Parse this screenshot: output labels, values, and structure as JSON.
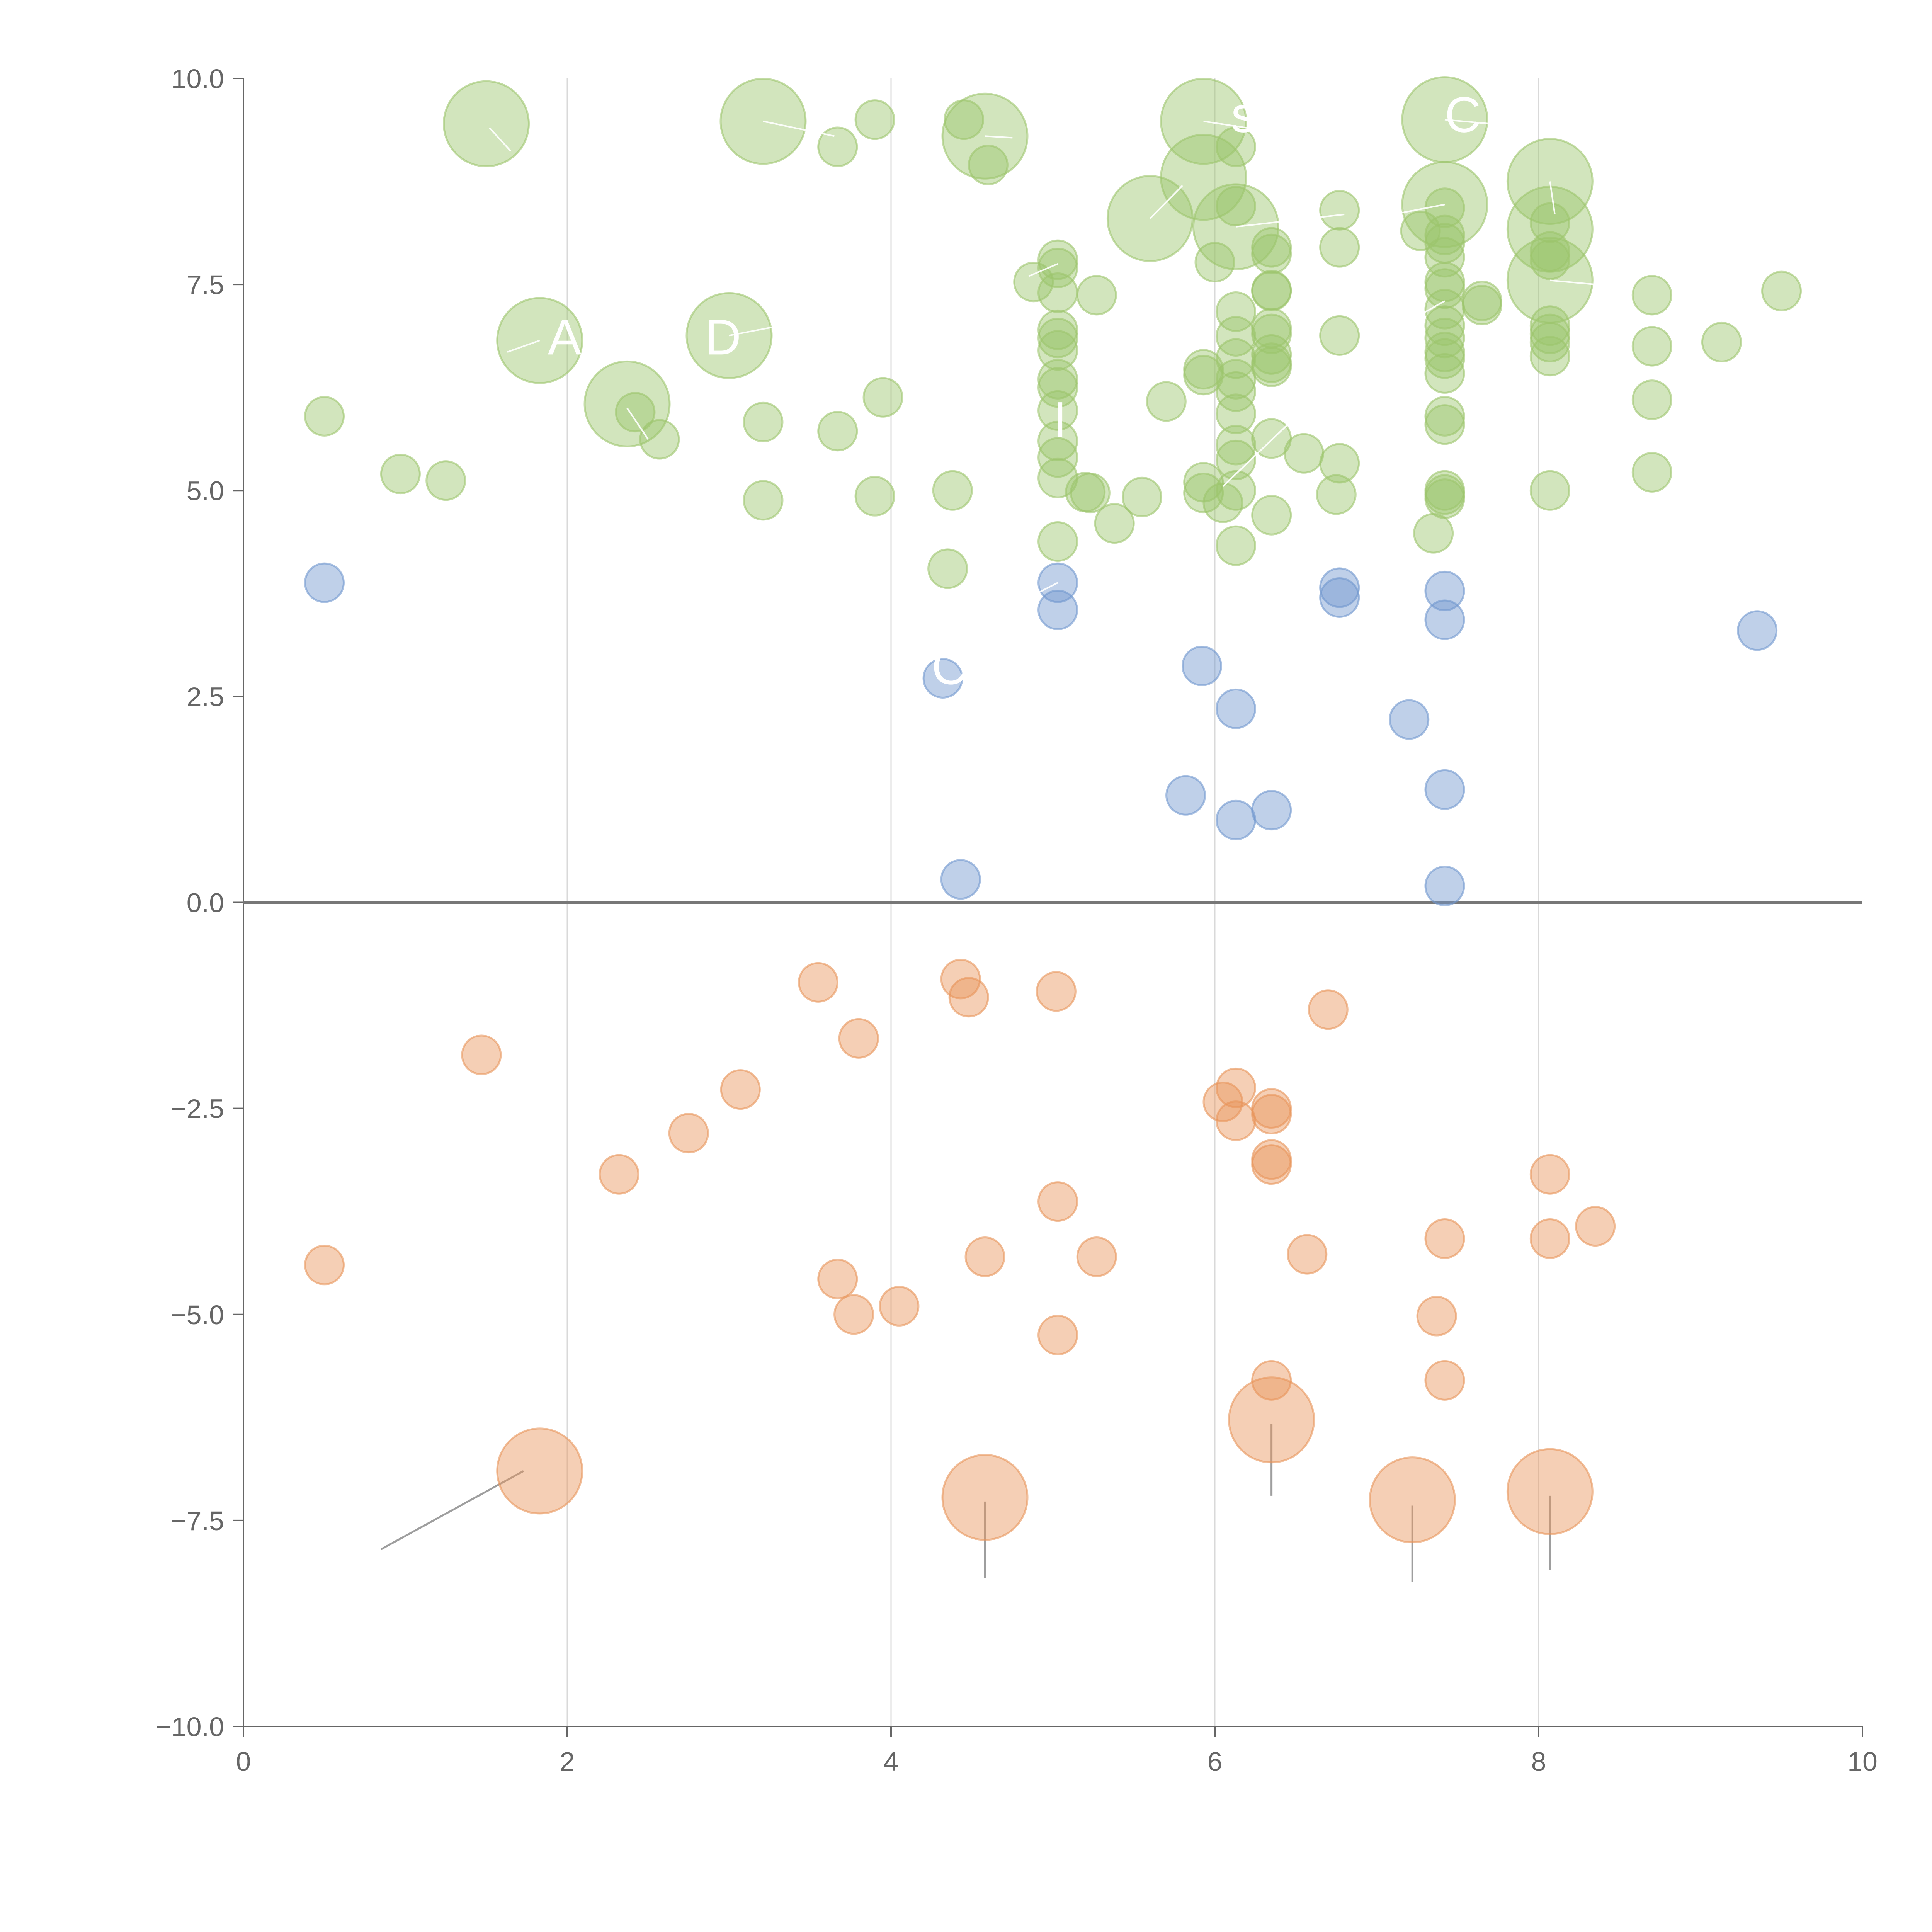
{
  "colors": {
    "green": "#9cc56c",
    "blue": "#7297cf",
    "orange": "#e8955a"
  },
  "chart_data": {
    "type": "scatter",
    "title": "",
    "xlabel": "",
    "ylabel": "",
    "xlim": [
      0,
      10
    ],
    "ylim": [
      -10,
      10
    ],
    "x_ticks": [
      "0",
      "2",
      "4",
      "6",
      "8",
      "10"
    ],
    "y_ticks": [
      "10.0",
      "7.5",
      "5.0",
      "2.5",
      "0.0",
      "−2.5",
      "−5.0",
      "−7.5",
      "−10.0"
    ],
    "grid": "vertical",
    "legend": "none",
    "bubble_size_scale": {
      "small": 1,
      "large": 2.2
    },
    "series": [
      {
        "color": "green",
        "points": [
          [
            0.5,
            5.9,
            1
          ],
          [
            0.97,
            5.2,
            1
          ],
          [
            1.25,
            5.12,
            1
          ],
          [
            1.5,
            9.45,
            2.2
          ],
          [
            1.83,
            6.82,
            2.2
          ],
          [
            2.37,
            6.05,
            2.2
          ],
          [
            2.42,
            5.95,
            1
          ],
          [
            2.57,
            5.62,
            1
          ],
          [
            3.0,
            6.88,
            2.2
          ],
          [
            3.21,
            5.83,
            1
          ],
          [
            3.21,
            4.88,
            1
          ],
          [
            3.21,
            9.48,
            2.2
          ],
          [
            3.67,
            9.17,
            1
          ],
          [
            3.67,
            5.72,
            1
          ],
          [
            3.9,
            9.5,
            1
          ],
          [
            3.9,
            4.93,
            1
          ],
          [
            3.95,
            6.13,
            1
          ],
          [
            4.35,
            4.05,
            1
          ],
          [
            4.38,
            5.0,
            1
          ],
          [
            4.45,
            9.5,
            1
          ],
          [
            4.58,
            9.3,
            2.2
          ],
          [
            4.6,
            8.95,
            1
          ],
          [
            4.88,
            7.53,
            1
          ],
          [
            5.03,
            7.8,
            1
          ],
          [
            5.03,
            7.7,
            1
          ],
          [
            5.03,
            7.4,
            1
          ],
          [
            5.03,
            6.95,
            1
          ],
          [
            5.03,
            6.85,
            1
          ],
          [
            5.03,
            6.7,
            1
          ],
          [
            5.03,
            6.35,
            1
          ],
          [
            5.03,
            6.25,
            1
          ],
          [
            5.03,
            5.97,
            1
          ],
          [
            5.03,
            5.6,
            1
          ],
          [
            5.03,
            5.4,
            1
          ],
          [
            5.03,
            5.15,
            1
          ],
          [
            5.03,
            4.38,
            1
          ],
          [
            5.2,
            4.98,
            1
          ],
          [
            5.23,
            4.97,
            1
          ],
          [
            5.27,
            7.37,
            1
          ],
          [
            5.38,
            4.6,
            1
          ],
          [
            5.55,
            4.92,
            1
          ],
          [
            5.6,
            8.3,
            2.2
          ],
          [
            5.7,
            6.08,
            1
          ],
          [
            5.93,
            9.48,
            2.2
          ],
          [
            5.93,
            8.8,
            2.2
          ],
          [
            5.93,
            6.47,
            1
          ],
          [
            5.93,
            6.4,
            1
          ],
          [
            5.93,
            5.1,
            1
          ],
          [
            5.93,
            4.97,
            1
          ],
          [
            6.0,
            7.77,
            1
          ],
          [
            6.05,
            4.85,
            1
          ],
          [
            6.13,
            8.2,
            2.2
          ],
          [
            6.13,
            9.17,
            1
          ],
          [
            6.13,
            8.45,
            1
          ],
          [
            6.13,
            7.17,
            1
          ],
          [
            6.13,
            6.87,
            1
          ],
          [
            6.13,
            6.6,
            1
          ],
          [
            6.13,
            6.35,
            1
          ],
          [
            6.13,
            6.2,
            1
          ],
          [
            6.13,
            5.93,
            1
          ],
          [
            6.13,
            5.55,
            1
          ],
          [
            6.13,
            5.37,
            1
          ],
          [
            6.13,
            5.0,
            1
          ],
          [
            6.13,
            4.33,
            1
          ],
          [
            6.35,
            7.95,
            1
          ],
          [
            6.35,
            7.87,
            1
          ],
          [
            6.35,
            7.43,
            1
          ],
          [
            6.35,
            7.42,
            1
          ],
          [
            6.35,
            6.97,
            1
          ],
          [
            6.35,
            6.9,
            1
          ],
          [
            6.35,
            6.65,
            1
          ],
          [
            6.35,
            6.55,
            1
          ],
          [
            6.35,
            6.5,
            1
          ],
          [
            6.35,
            5.63,
            1
          ],
          [
            6.35,
            4.7,
            1
          ],
          [
            6.55,
            5.45,
            1
          ],
          [
            6.75,
            4.95,
            1
          ],
          [
            6.77,
            8.4,
            1
          ],
          [
            6.77,
            7.95,
            1
          ],
          [
            6.77,
            6.88,
            1
          ],
          [
            6.77,
            5.33,
            1
          ],
          [
            7.27,
            8.15,
            1
          ],
          [
            7.35,
            4.48,
            1
          ],
          [
            7.42,
            9.5,
            2.2
          ],
          [
            7.42,
            8.47,
            2.2
          ],
          [
            7.42,
            8.43,
            1
          ],
          [
            7.42,
            8.1,
            1
          ],
          [
            7.42,
            8.0,
            1
          ],
          [
            7.42,
            7.83,
            1
          ],
          [
            7.42,
            7.53,
            1
          ],
          [
            7.42,
            7.45,
            1
          ],
          [
            7.42,
            7.2,
            1
          ],
          [
            7.42,
            7.0,
            1
          ],
          [
            7.42,
            6.85,
            1
          ],
          [
            7.42,
            6.68,
            1
          ],
          [
            7.42,
            6.6,
            1
          ],
          [
            7.42,
            6.42,
            1
          ],
          [
            7.42,
            5.9,
            1
          ],
          [
            7.42,
            5.8,
            1
          ],
          [
            7.42,
            5.0,
            1
          ],
          [
            7.42,
            4.95,
            1
          ],
          [
            7.42,
            4.9,
            1
          ],
          [
            7.65,
            7.3,
            1
          ],
          [
            7.65,
            7.25,
            1
          ],
          [
            8.07,
            8.75,
            2.2
          ],
          [
            8.07,
            8.17,
            2.2
          ],
          [
            8.07,
            7.55,
            2.2
          ],
          [
            8.07,
            8.25,
            1
          ],
          [
            8.07,
            7.9,
            1
          ],
          [
            8.07,
            7.8,
            1
          ],
          [
            8.07,
            7.0,
            1
          ],
          [
            8.07,
            6.9,
            1
          ],
          [
            8.07,
            6.8,
            1
          ],
          [
            8.07,
            6.63,
            1
          ],
          [
            8.07,
            5.0,
            1
          ],
          [
            8.7,
            7.37,
            1
          ],
          [
            8.7,
            6.75,
            1
          ],
          [
            8.7,
            6.1,
            1
          ],
          [
            8.7,
            5.22,
            1
          ],
          [
            9.13,
            6.8,
            1
          ],
          [
            9.5,
            7.42,
            1
          ]
        ]
      },
      {
        "color": "blue",
        "points": [
          [
            0.5,
            3.88,
            1
          ],
          [
            4.32,
            2.72,
            1
          ],
          [
            4.43,
            0.28,
            1
          ],
          [
            5.03,
            3.88,
            1
          ],
          [
            5.03,
            3.55,
            1
          ],
          [
            5.82,
            1.3,
            1
          ],
          [
            5.92,
            2.87,
            1
          ],
          [
            6.13,
            2.35,
            1
          ],
          [
            6.13,
            1.0,
            1
          ],
          [
            6.35,
            1.12,
            1
          ],
          [
            6.77,
            3.82,
            1
          ],
          [
            6.77,
            3.7,
            1
          ],
          [
            7.2,
            2.22,
            1
          ],
          [
            7.42,
            3.78,
            1
          ],
          [
            7.42,
            3.43,
            1
          ],
          [
            7.42,
            1.37,
            1
          ],
          [
            7.42,
            0.2,
            1
          ],
          [
            9.35,
            3.3,
            1
          ]
        ]
      },
      {
        "color": "orange",
        "points": [
          [
            0.5,
            -4.4,
            1
          ],
          [
            1.47,
            -1.85,
            1
          ],
          [
            1.83,
            -6.9,
            2.2
          ],
          [
            2.32,
            -3.3,
            1
          ],
          [
            2.75,
            -2.8,
            1
          ],
          [
            3.07,
            -2.27,
            1
          ],
          [
            3.55,
            -0.97,
            1
          ],
          [
            3.67,
            -4.57,
            1
          ],
          [
            3.77,
            -5.0,
            1
          ],
          [
            3.8,
            -1.65,
            1
          ],
          [
            4.05,
            -4.9,
            1
          ],
          [
            4.43,
            -0.93,
            1
          ],
          [
            4.48,
            -1.15,
            1
          ],
          [
            4.58,
            -4.3,
            1
          ],
          [
            4.58,
            -7.22,
            2.2
          ],
          [
            5.02,
            -1.08,
            1
          ],
          [
            5.03,
            -3.63,
            1
          ],
          [
            5.03,
            -5.25,
            1
          ],
          [
            5.27,
            -4.3,
            1
          ],
          [
            6.05,
            -2.42,
            1
          ],
          [
            6.13,
            -2.25,
            1
          ],
          [
            6.13,
            -2.65,
            1
          ],
          [
            6.35,
            -2.5,
            1
          ],
          [
            6.35,
            -2.57,
            1
          ],
          [
            6.35,
            -3.12,
            1
          ],
          [
            6.35,
            -3.18,
            1
          ],
          [
            6.35,
            -5.8,
            1
          ],
          [
            6.35,
            -6.28,
            2.2
          ],
          [
            6.57,
            -4.27,
            1
          ],
          [
            6.7,
            -1.3,
            1
          ],
          [
            7.22,
            -7.25,
            2.2
          ],
          [
            7.37,
            -5.02,
            1
          ],
          [
            7.42,
            -4.08,
            1
          ],
          [
            7.42,
            -5.8,
            1
          ],
          [
            8.07,
            -3.3,
            1
          ],
          [
            8.07,
            -4.08,
            1
          ],
          [
            8.07,
            -7.15,
            2.2
          ],
          [
            8.35,
            -3.93,
            1
          ]
        ]
      }
    ],
    "leaders": [
      {
        "from": [
          1.73,
          -6.9
        ],
        "to": [
          0.85,
          -7.85
        ]
      },
      {
        "from": [
          4.58,
          -7.27
        ],
        "to": [
          4.58,
          -8.2
        ]
      },
      {
        "from": [
          6.35,
          -6.33
        ],
        "to": [
          6.35,
          -7.2
        ]
      },
      {
        "from": [
          7.22,
          -7.32
        ],
        "to": [
          7.22,
          -8.25
        ]
      },
      {
        "from": [
          8.07,
          -7.2
        ],
        "to": [
          8.07,
          -8.1
        ]
      }
    ],
    "light_leaders": [
      {
        "from": [
          1.52,
          9.4
        ],
        "to": [
          1.65,
          9.12
        ]
      },
      {
        "from": [
          1.83,
          6.82
        ],
        "to": [
          1.63,
          6.68
        ]
      },
      {
        "from": [
          2.37,
          6.0
        ],
        "to": [
          2.5,
          5.62
        ]
      },
      {
        "from": [
          3.0,
          6.88
        ],
        "to": [
          3.45,
          7.05
        ]
      },
      {
        "from": [
          3.21,
          9.48
        ],
        "to": [
          3.65,
          9.3
        ]
      },
      {
        "from": [
          4.58,
          9.3
        ],
        "to": [
          4.75,
          9.28
        ]
      },
      {
        "from": [
          5.03,
          7.75
        ],
        "to": [
          4.85,
          7.6
        ]
      },
      {
        "from": [
          5.6,
          8.3
        ],
        "to": [
          5.8,
          8.7
        ]
      },
      {
        "from": [
          5.93,
          9.48
        ],
        "to": [
          6.2,
          9.4
        ]
      },
      {
        "from": [
          6.13,
          8.2
        ],
        "to": [
          6.8,
          8.35
        ]
      },
      {
        "from": [
          6.05,
          5.05
        ],
        "to": [
          6.45,
          5.8
        ]
      },
      {
        "from": [
          7.42,
          9.5
        ],
        "to": [
          7.7,
          9.45
        ]
      },
      {
        "from": [
          7.42,
          8.47
        ],
        "to": [
          7.1,
          8.35
        ]
      },
      {
        "from": [
          7.42,
          7.3
        ],
        "to": [
          7.15,
          7.0
        ]
      },
      {
        "from": [
          8.07,
          8.75
        ],
        "to": [
          8.1,
          8.35
        ]
      },
      {
        "from": [
          8.07,
          7.55
        ],
        "to": [
          8.35,
          7.5
        ]
      },
      {
        "from": [
          5.03,
          3.88
        ],
        "to": [
          4.85,
          3.7
        ]
      }
    ],
    "labels": [
      {
        "text": "A",
        "x": 1.88,
        "y": 6.65
      },
      {
        "text": "D",
        "x": 2.85,
        "y": 6.65
      },
      {
        "text": "I",
        "x": 5.0,
        "y": 5.65
      },
      {
        "text": "C",
        "x": 4.25,
        "y": 2.65
      },
      {
        "text": "C",
        "x": 7.42,
        "y": 9.35
      },
      {
        "text": "s",
        "x": 6.1,
        "y": 9.35
      }
    ]
  }
}
